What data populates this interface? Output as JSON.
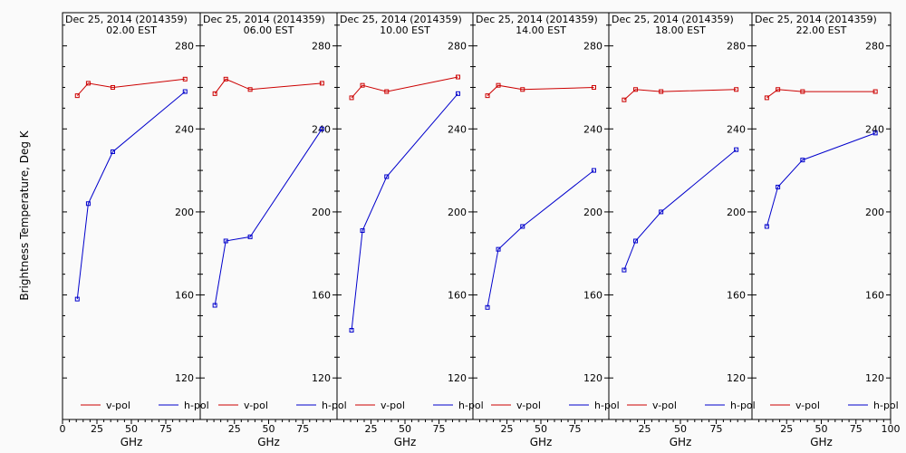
{
  "figure": {
    "ylabel": "Brightness Temperature, Deg K",
    "xlabel": "GHz"
  },
  "colors": {
    "v_pol": "#cc0000",
    "h_pol": "#0000cc",
    "axis": "#000000",
    "background": "#fafafa"
  },
  "chart_data": [
    {
      "type": "line",
      "title": "Dec 25, 2014 (2014359)",
      "subtitle": "02.00 EST",
      "xlabel": "GHz",
      "ylabel": "Brightness Temperature, Deg K",
      "xlim": [
        0,
        100
      ],
      "ylim": [
        100,
        296
      ],
      "yticks": [
        120,
        160,
        200,
        240,
        280
      ],
      "xticks": [
        0,
        25,
        50,
        75
      ],
      "legend": "bottom",
      "series": [
        {
          "name": "v-pol",
          "x": [
            10.7,
            18.7,
            36.5,
            89.0
          ],
          "y": [
            256,
            262,
            260,
            264
          ]
        },
        {
          "name": "h-pol",
          "x": [
            10.7,
            18.7,
            36.5,
            89.0
          ],
          "y": [
            158,
            204,
            229,
            258
          ]
        }
      ]
    },
    {
      "type": "line",
      "title": "Dec 25, 2014 (2014359)",
      "subtitle": "06.00 EST",
      "xlabel": "GHz",
      "xlim": [
        0,
        100
      ],
      "ylim": [
        100,
        296
      ],
      "yticks": [
        120,
        160,
        200,
        240,
        280
      ],
      "xticks": [
        25,
        50,
        75
      ],
      "legend": "bottom",
      "series": [
        {
          "name": "v-pol",
          "x": [
            10.7,
            18.7,
            36.5,
            89.0
          ],
          "y": [
            257,
            264,
            259,
            262
          ]
        },
        {
          "name": "h-pol",
          "x": [
            10.7,
            18.7,
            36.5,
            89.0
          ],
          "y": [
            155,
            186,
            188,
            240
          ]
        }
      ]
    },
    {
      "type": "line",
      "title": "Dec 25, 2014 (2014359)",
      "subtitle": "10.00 EST",
      "xlabel": "GHz",
      "xlim": [
        0,
        100
      ],
      "ylim": [
        100,
        296
      ],
      "yticks": [
        120,
        160,
        200,
        240,
        280
      ],
      "xticks": [
        25,
        50,
        75
      ],
      "legend": "bottom",
      "series": [
        {
          "name": "v-pol",
          "x": [
            10.7,
            18.7,
            36.5,
            89.0
          ],
          "y": [
            255,
            261,
            258,
            265
          ]
        },
        {
          "name": "h-pol",
          "x": [
            10.7,
            18.7,
            36.5,
            89.0
          ],
          "y": [
            143,
            191,
            217,
            257
          ]
        }
      ]
    },
    {
      "type": "line",
      "title": "Dec 25, 2014 (2014359)",
      "subtitle": "14.00 EST",
      "xlabel": "GHz",
      "xlim": [
        0,
        100
      ],
      "ylim": [
        100,
        296
      ],
      "yticks": [
        120,
        160,
        200,
        240,
        280
      ],
      "xticks": [
        25,
        50,
        75
      ],
      "legend": "bottom",
      "series": [
        {
          "name": "v-pol",
          "x": [
            10.7,
            18.7,
            36.5,
            89.0
          ],
          "y": [
            256,
            261,
            259,
            260
          ]
        },
        {
          "name": "h-pol",
          "x": [
            10.7,
            18.7,
            36.5,
            89.0
          ],
          "y": [
            154,
            182,
            193,
            220
          ]
        }
      ]
    },
    {
      "type": "line",
      "title": "Dec 25, 2014 (2014359)",
      "subtitle": "18.00 EST",
      "xlabel": "GHz",
      "xlim": [
        0,
        100
      ],
      "ylim": [
        100,
        296
      ],
      "yticks": [
        120,
        160,
        200,
        240,
        280
      ],
      "xticks": [
        25,
        50,
        75
      ],
      "legend": "bottom",
      "series": [
        {
          "name": "v-pol",
          "x": [
            10.7,
            18.7,
            36.5,
            89.0
          ],
          "y": [
            254,
            259,
            258,
            259
          ]
        },
        {
          "name": "h-pol",
          "x": [
            10.7,
            18.7,
            36.5,
            89.0
          ],
          "y": [
            172,
            186,
            200,
            230
          ]
        }
      ]
    },
    {
      "type": "line",
      "title": "Dec 25, 2014 (2014359)",
      "subtitle": "22.00 EST",
      "xlabel": "GHz",
      "xlim": [
        0,
        100
      ],
      "ylim": [
        100,
        296
      ],
      "yticks": [
        120,
        160,
        200,
        240,
        280
      ],
      "xticks": [
        25,
        50,
        75,
        100
      ],
      "legend": "bottom",
      "series": [
        {
          "name": "v-pol",
          "x": [
            10.7,
            18.7,
            36.5,
            89.0
          ],
          "y": [
            255,
            259,
            258,
            258
          ]
        },
        {
          "name": "h-pol",
          "x": [
            10.7,
            18.7,
            36.5,
            89.0
          ],
          "y": [
            193,
            212,
            225,
            238
          ]
        }
      ]
    }
  ]
}
